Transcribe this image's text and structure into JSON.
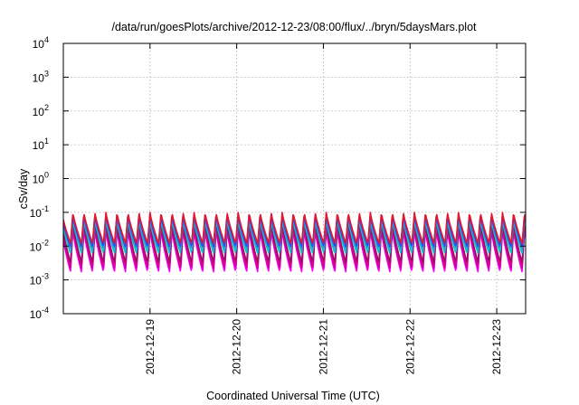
{
  "chart_data": {
    "type": "line",
    "title": "/data/run/goesPlots/archive/2012-12-23/08:00/flux/../bryn/5daysMars.plot",
    "xlabel": "Coordinated Universal Time (UTC)",
    "ylabel": "cSv/day",
    "y_scale": "log",
    "ylim": [
      0.0001,
      10000
    ],
    "xlim": [
      "2012-12-18T00:00",
      "2012-12-23T08:00"
    ],
    "grid": true,
    "legend": "none",
    "y_ticks": [
      {
        "base": "10",
        "exp": "-4",
        "value": 0.0001
      },
      {
        "base": "10",
        "exp": "-3",
        "value": 0.001
      },
      {
        "base": "10",
        "exp": "-2",
        "value": 0.01
      },
      {
        "base": "10",
        "exp": "-1",
        "value": 0.1
      },
      {
        "base": "10",
        "exp": "0",
        "value": 1
      },
      {
        "base": "10",
        "exp": "1",
        "value": 10
      },
      {
        "base": "10",
        "exp": "2",
        "value": 100
      },
      {
        "base": "10",
        "exp": "3",
        "value": 1000
      },
      {
        "base": "10",
        "exp": "4",
        "value": 10000
      }
    ],
    "x_ticks": [
      {
        "label": "2012-12-19",
        "value": "2012-12-19T00:00"
      },
      {
        "label": "2012-12-20",
        "value": "2012-12-20T00:00"
      },
      {
        "label": "2012-12-21",
        "value": "2012-12-21T00:00"
      },
      {
        "label": "2012-12-22",
        "value": "2012-12-22T00:00"
      },
      {
        "label": "2012-12-23",
        "value": "2012-12-23T00:00"
      }
    ],
    "pattern": {
      "period_hours": 3.05,
      "rise_fraction": 0.22,
      "description_of_shape": "sawtooth"
    },
    "series": [
      {
        "color": "#ff00ff",
        "peak": 0.03,
        "trough": 0.0017
      },
      {
        "color": "#cc00aa",
        "peak": 0.035,
        "trough": 0.0021
      },
      {
        "color": "#e0008a",
        "peak": 0.045,
        "trough": 0.0026
      },
      {
        "color": "#9b1060",
        "peak": 0.05,
        "trough": 0.0032
      },
      {
        "color": "#00c8c8",
        "peak": 0.06,
        "trough": 0.006
      },
      {
        "color": "#2a9fd6",
        "peak": 0.07,
        "trough": 0.008
      },
      {
        "color": "#1f4fff",
        "peak": 0.08,
        "trough": 0.0095
      },
      {
        "color": "#7a2fc8",
        "peak": 0.09,
        "trough": 0.011
      },
      {
        "color": "#e01830",
        "peak": 0.1,
        "trough": 0.012
      }
    ],
    "colors": {
      "grid": "#aaaaaa",
      "axis": "#000000"
    }
  }
}
